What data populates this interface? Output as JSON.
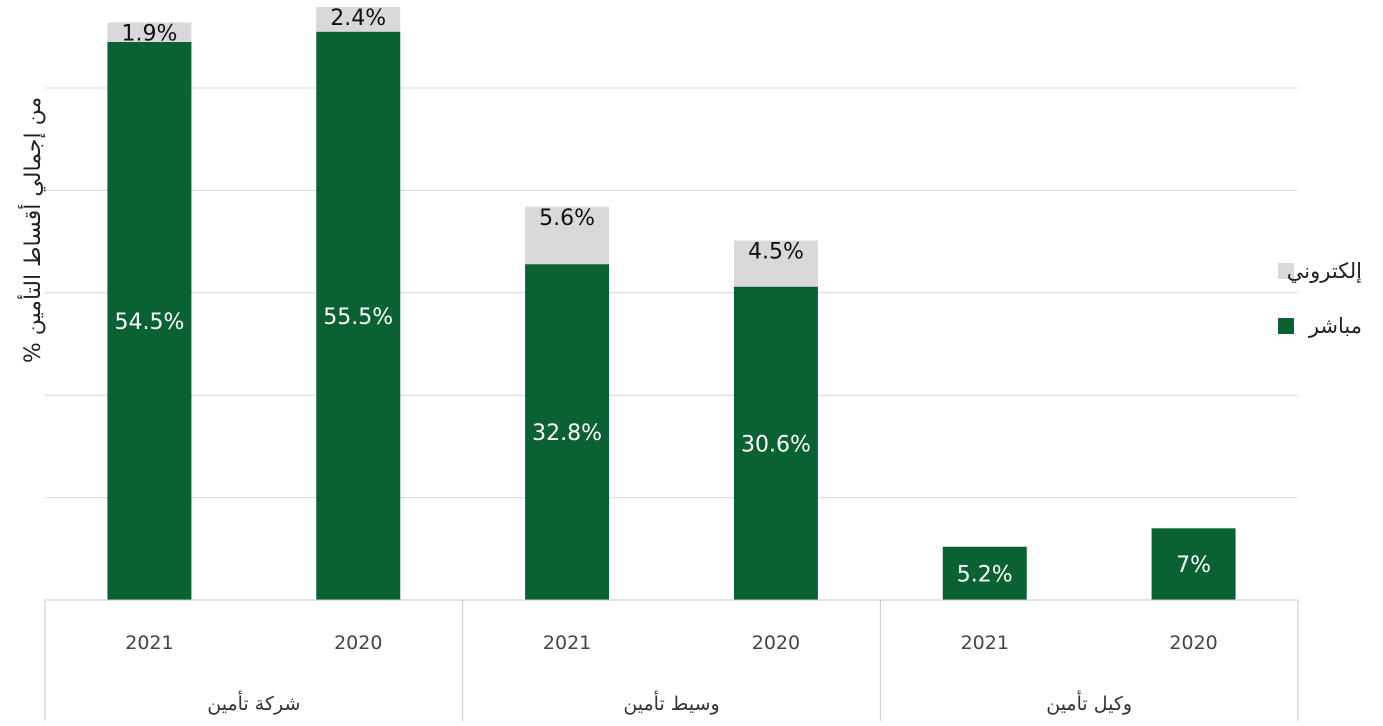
{
  "chart_data": {
    "type": "bar",
    "stacked": true,
    "ylabel": "% من إجمالي أقساط التأمين",
    "groups": [
      {
        "label": "شركة تأمين",
        "categories": [
          "2021",
          "2020"
        ]
      },
      {
        "label": "وسيط تأمين",
        "categories": [
          "2021",
          "2020"
        ]
      },
      {
        "label": "وكيل تأمين",
        "categories": [
          "2021",
          "2020"
        ]
      }
    ],
    "series": [
      {
        "name": "مباشر",
        "color": "#0a6132",
        "values": [
          54.5,
          55.5,
          32.8,
          30.6,
          5.2,
          7
        ],
        "labels": [
          "54.5%",
          "55.5%",
          "32.8%",
          "30.6%",
          "5.2%",
          "7%"
        ]
      },
      {
        "name": "إلكتروني",
        "color": "#d9d9d9",
        "values": [
          1.9,
          2.4,
          5.6,
          4.5,
          null,
          null
        ],
        "labels": [
          "1.9%",
          "2.4%",
          "5.6%",
          "4.5%",
          "",
          ""
        ]
      }
    ],
    "ylim": [
      0,
      60
    ],
    "grid": true,
    "legend_position": "right"
  }
}
